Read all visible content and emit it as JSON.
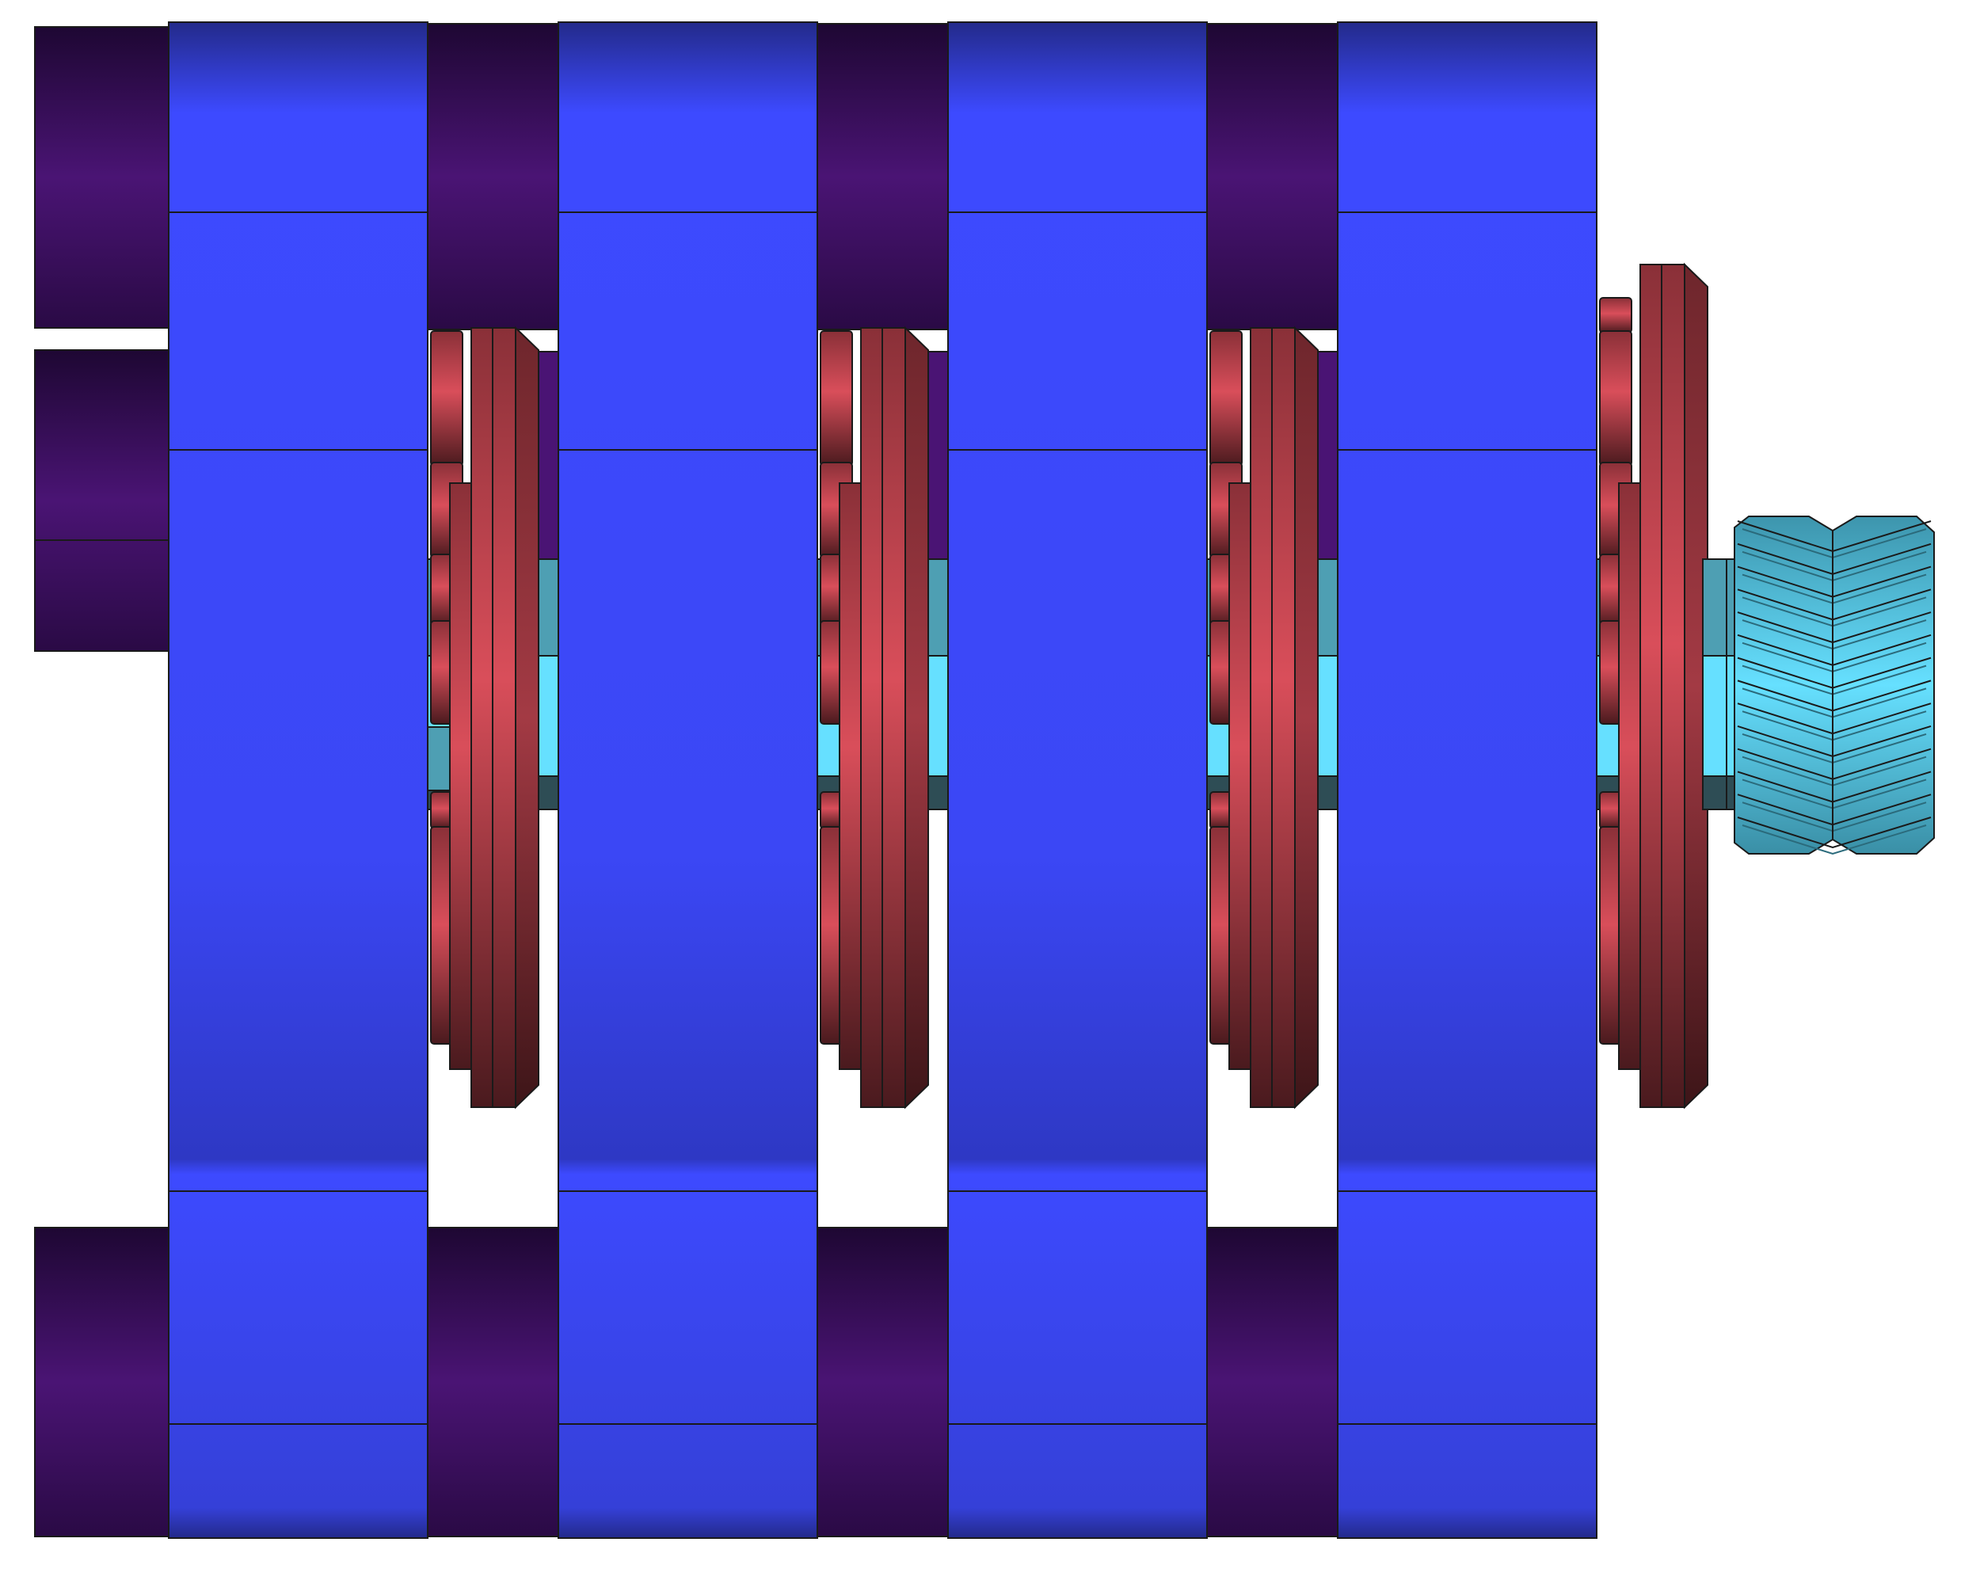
{
  "colors": {
    "background": "#ffffff",
    "outline": "#1a1a1a",
    "ring_blue": "#3d4aff",
    "ring_blue_dark": "#2e38c4",
    "spacer_purple": "#4a1474",
    "spacer_purple_dark": "#2a0a45",
    "gear_red": "#d94e5a",
    "gear_red_dark": "#5a2226",
    "shaft_cyan_light": "#66e0ff",
    "shaft_cyan_mid": "#4e9fb3",
    "shaft_cyan_dark": "#2e4d55",
    "pinion_cyan": "#4ab6d6"
  },
  "assembly": {
    "ring_count": 4,
    "spacer_column_count": 4,
    "gear_stack_count": 4,
    "pinion_count": 1
  }
}
